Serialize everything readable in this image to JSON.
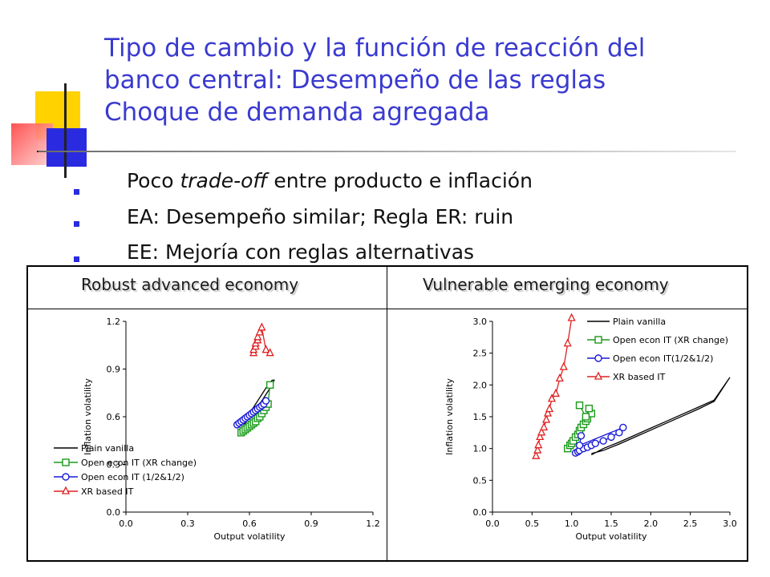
{
  "slide": {
    "title_lines": [
      "Tipo de cambio y la función de reacción del",
      "banco central: Desempeño de las reglas",
      "Choque de demanda agregada"
    ],
    "bullets": [
      {
        "pre": "Poco ",
        "em": "trade-off",
        "post": " entre producto e inflación"
      },
      {
        "pre": "EA: Desempeño similar; Regla ER: ruin",
        "em": "",
        "post": ""
      },
      {
        "pre": "EE: Mejoría con reglas alternativas",
        "em": "",
        "post": ""
      }
    ],
    "table_headers": [
      "Robust advanced economy",
      "Vulnerable emerging economy"
    ]
  },
  "colors": {
    "title": "#3a3ad0",
    "bullet": "#2a2ae0",
    "plain": "#000000",
    "open_xr": "#1a9a1a",
    "open_half": "#1a1ad8",
    "xr_based": "#e02020"
  },
  "chart_data": [
    {
      "type": "line",
      "title": "",
      "xlabel": "Output volatility",
      "ylabel": "Inflation volatility",
      "xlim": [
        0.0,
        1.2
      ],
      "ylim": [
        0.0,
        1.2
      ],
      "xticks": [
        "0.0",
        "0.3",
        "0.6",
        "0.9",
        "1.2"
      ],
      "yticks": [
        "0.0",
        "0.3",
        "0.6",
        "0.9",
        "1.2"
      ],
      "legend_position": "bottom-left",
      "series": [
        {
          "name": "Plain vanilla",
          "key": "plain",
          "marker": "none",
          "x": [
            0.55,
            0.56,
            0.57,
            0.58,
            0.59,
            0.6,
            0.61,
            0.62,
            0.63,
            0.64,
            0.65,
            0.66,
            0.67,
            0.68,
            0.69,
            0.7,
            0.71,
            0.72,
            0.71,
            0.7,
            0.69,
            0.68,
            0.67,
            0.66,
            0.65,
            0.64,
            0.63,
            0.62,
            0.61,
            0.6,
            0.59,
            0.58,
            0.57,
            0.56
          ],
          "y": [
            0.54,
            0.56,
            0.57,
            0.59,
            0.61,
            0.62,
            0.64,
            0.66,
            0.68,
            0.7,
            0.72,
            0.74,
            0.76,
            0.78,
            0.8,
            0.81,
            0.83,
            0.83,
            0.8,
            0.78,
            0.76,
            0.74,
            0.72,
            0.7,
            0.68,
            0.67,
            0.66,
            0.64,
            0.62,
            0.6,
            0.58,
            0.56,
            0.54,
            0.53
          ]
        },
        {
          "name": "Open econ IT (XR change)",
          "key": "open_xr",
          "marker": "square",
          "x": [
            0.56,
            0.57,
            0.58,
            0.59,
            0.6,
            0.61,
            0.62,
            0.63,
            0.64,
            0.65,
            0.66,
            0.67,
            0.68,
            0.69,
            0.7
          ],
          "y": [
            0.5,
            0.51,
            0.52,
            0.53,
            0.54,
            0.55,
            0.56,
            0.57,
            0.59,
            0.6,
            0.62,
            0.64,
            0.66,
            0.68,
            0.8
          ]
        },
        {
          "name": "Open econ IT (1/2&1/2)",
          "key": "open_half",
          "marker": "circle",
          "x": [
            0.54,
            0.55,
            0.56,
            0.57,
            0.58,
            0.59,
            0.6,
            0.61,
            0.62,
            0.63,
            0.64,
            0.65,
            0.66,
            0.67,
            0.68
          ],
          "y": [
            0.55,
            0.56,
            0.57,
            0.58,
            0.59,
            0.6,
            0.61,
            0.62,
            0.63,
            0.64,
            0.65,
            0.66,
            0.67,
            0.68,
            0.7
          ]
        },
        {
          "name": "XR based IT",
          "key": "xr_based",
          "marker": "triangle",
          "x": [
            0.62,
            0.62,
            0.63,
            0.63,
            0.64,
            0.64,
            0.65,
            0.66,
            0.68,
            0.7
          ],
          "y": [
            1.0,
            1.02,
            1.04,
            1.06,
            1.08,
            1.1,
            1.13,
            1.16,
            1.02,
            1.0
          ]
        }
      ]
    },
    {
      "type": "line",
      "title": "",
      "xlabel": "Output volatility",
      "ylabel": "Inflation volatility",
      "xlim": [
        0.0,
        3.0
      ],
      "ylim": [
        0.0,
        3.0
      ],
      "xticks": [
        "0.0",
        "0.5",
        "1.0",
        "1.5",
        "2.0",
        "2.5",
        "3.0"
      ],
      "yticks": [
        "0.0",
        "0.5",
        "1.0",
        "1.5",
        "2.0",
        "2.5",
        "3.0"
      ],
      "legend_position": "top-right",
      "series": [
        {
          "name": "Plain vanilla",
          "key": "plain",
          "marker": "none",
          "x": [
            1.25,
            1.4,
            1.6,
            1.8,
            2.0,
            2.2,
            2.4,
            2.6,
            2.8,
            3.0,
            2.8,
            2.6,
            2.4,
            2.2,
            2.0,
            1.8,
            1.6,
            1.4,
            1.25
          ],
          "y": [
            0.9,
            1.0,
            1.1,
            1.21,
            1.32,
            1.43,
            1.54,
            1.65,
            1.76,
            2.12,
            1.74,
            1.62,
            1.51,
            1.4,
            1.29,
            1.18,
            1.07,
            0.97,
            0.92
          ]
        },
        {
          "name": "Open econ IT (XR change)",
          "key": "open_xr",
          "marker": "square",
          "x": [
            0.95,
            0.98,
            1.0,
            1.02,
            1.05,
            1.08,
            1.1,
            1.12,
            1.15,
            1.18,
            1.2,
            1.25,
            1.22,
            1.18,
            1.1
          ],
          "y": [
            1.0,
            1.05,
            1.08,
            1.12,
            1.18,
            1.22,
            1.28,
            1.33,
            1.38,
            1.43,
            1.47,
            1.55,
            1.63,
            1.5,
            1.68
          ]
        },
        {
          "name": "Open econ IT(1/2&1/2)",
          "key": "open_half",
          "marker": "circle",
          "x": [
            1.05,
            1.08,
            1.1,
            1.15,
            1.2,
            1.25,
            1.3,
            1.4,
            1.5,
            1.6,
            1.65,
            1.1,
            1.12
          ],
          "y": [
            0.93,
            0.95,
            0.97,
            1.0,
            1.02,
            1.05,
            1.08,
            1.12,
            1.18,
            1.25,
            1.33,
            1.05,
            1.2
          ]
        },
        {
          "name": "XR based IT",
          "key": "xr_based",
          "marker": "triangle",
          "x": [
            0.55,
            0.57,
            0.58,
            0.6,
            0.62,
            0.65,
            0.68,
            0.7,
            0.72,
            0.75,
            0.8,
            0.85,
            0.9,
            0.95,
            1.0
          ],
          "y": [
            0.88,
            0.97,
            1.05,
            1.18,
            1.25,
            1.33,
            1.45,
            1.55,
            1.62,
            1.78,
            1.86,
            2.1,
            2.28,
            2.65,
            3.05
          ]
        }
      ]
    }
  ]
}
